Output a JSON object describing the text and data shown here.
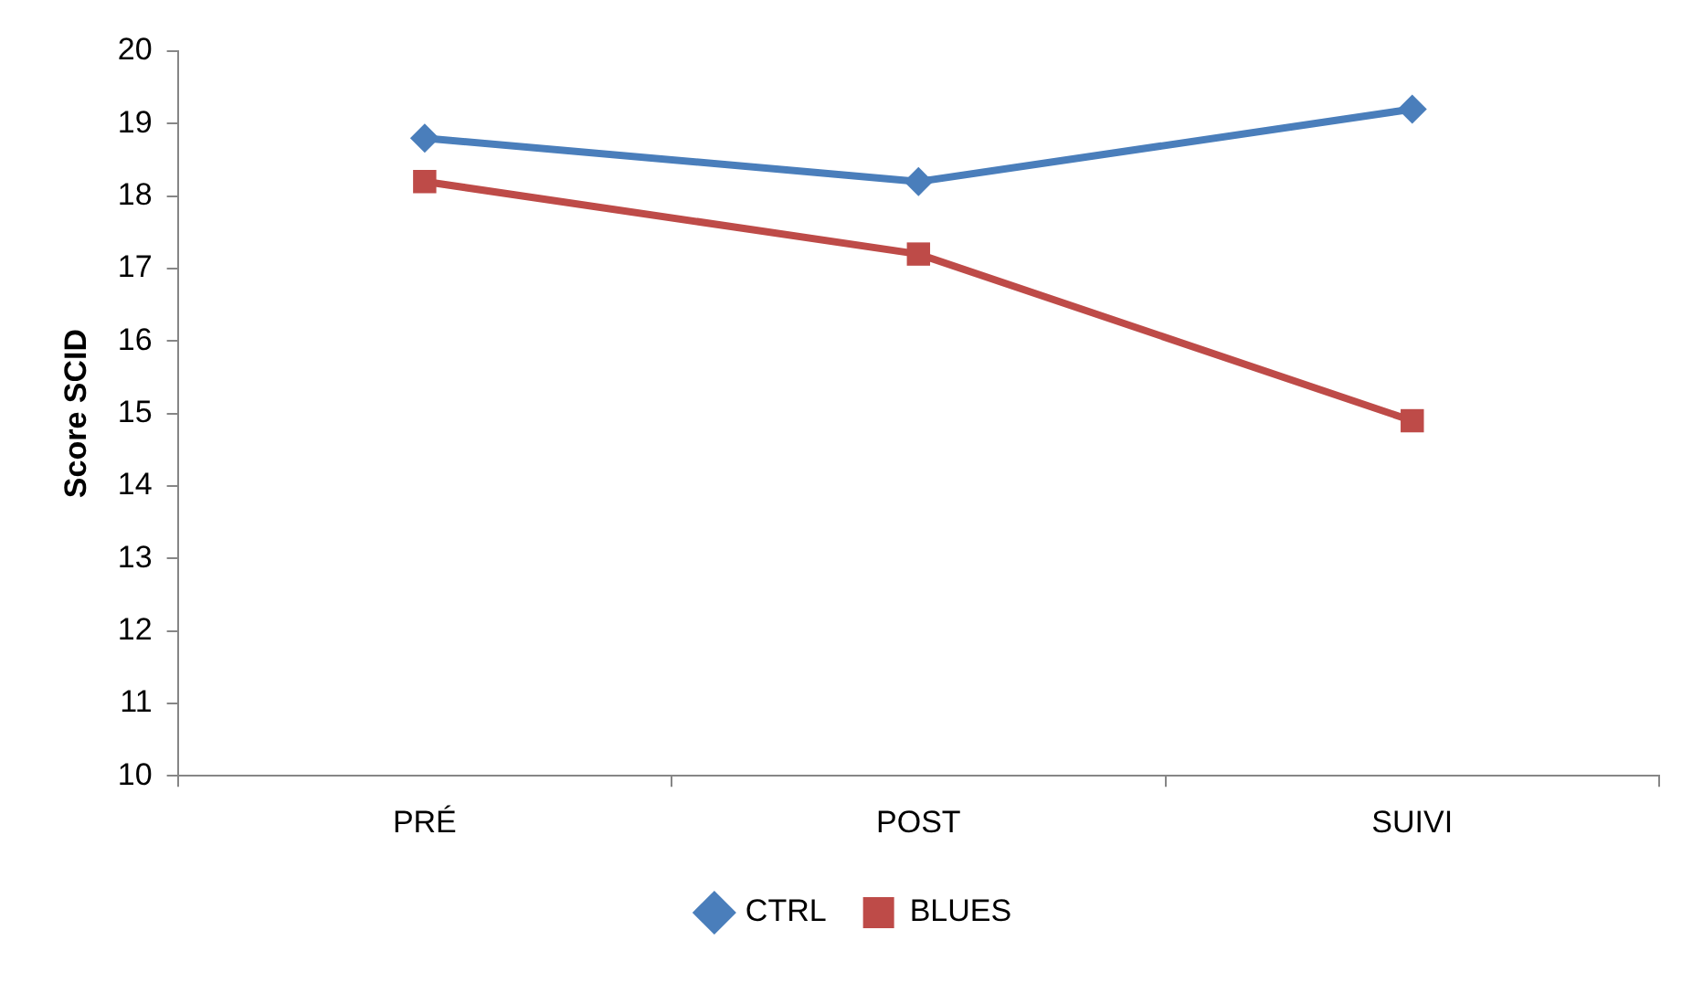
{
  "chart_data": {
    "type": "line",
    "ylabel": "Score SCID",
    "categories": [
      "PRÉ",
      "POST",
      "SUIVI"
    ],
    "series": [
      {
        "name": "CTRL",
        "color": "#4a7ebb",
        "marker": "diamond",
        "values": [
          18.8,
          18.2,
          19.2
        ]
      },
      {
        "name": "BLUES",
        "color": "#be4b48",
        "marker": "square",
        "values": [
          18.2,
          17.2,
          14.9
        ]
      }
    ],
    "ylim": [
      10,
      20
    ],
    "yticks": [
      10,
      11,
      12,
      13,
      14,
      15,
      16,
      17,
      18,
      19,
      20
    ],
    "grid": false,
    "legend": "bottom",
    "line_style": "solid"
  }
}
